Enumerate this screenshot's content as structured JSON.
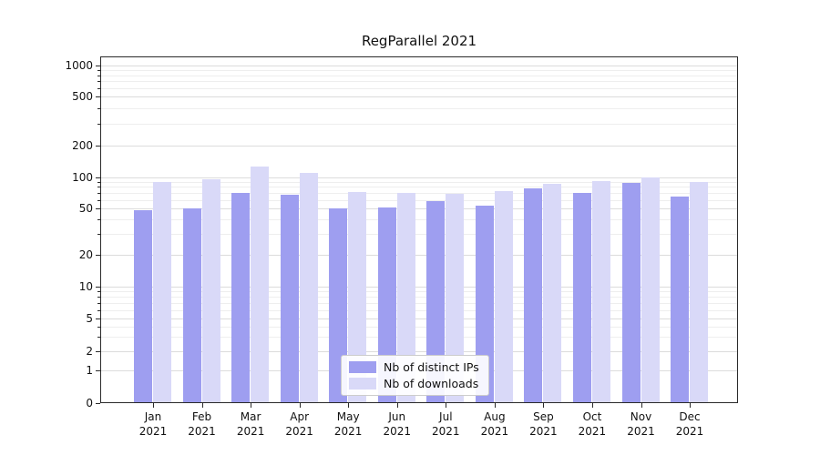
{
  "chart_data": {
    "type": "bar",
    "title": "RegParallel 2021",
    "yscale": "symlog",
    "grid": "horizontal major and minor gridlines",
    "legend_position": "lower center",
    "yticks": [
      "0",
      "1",
      "2",
      "5",
      "10",
      "20",
      "50",
      "100",
      "200",
      "500",
      "1000"
    ],
    "ylim": [
      0,
      1000
    ],
    "xticks": [
      "Jan\n2021",
      "Feb\n2021",
      "Mar\n2021",
      "Apr\n2021",
      "May\n2021",
      "Jun\n2021",
      "Jul\n2021",
      "Aug\n2021",
      "Sep\n2021",
      "Oct\n2021",
      "Nov\n2021",
      "Dec\n2021"
    ],
    "categories": [
      "Jan 2021",
      "Feb 2021",
      "Mar 2021",
      "Apr 2021",
      "May 2021",
      "Jun 2021",
      "Jul 2021",
      "Aug 2021",
      "Sep 2021",
      "Oct 2021",
      "Nov 2021",
      "Dec 2021"
    ],
    "series": [
      {
        "name": "Nb of distinct IPs",
        "color": "#9e9ef0",
        "values": [
          48,
          50,
          70,
          67,
          50,
          51,
          58,
          53,
          77,
          70,
          88,
          64
        ]
      },
      {
        "name": "Nb of downloads",
        "color": "#d9d9f8",
        "values": [
          90,
          95,
          125,
          110,
          72,
          70,
          68,
          73,
          85,
          92,
          100,
          90
        ]
      }
    ]
  }
}
